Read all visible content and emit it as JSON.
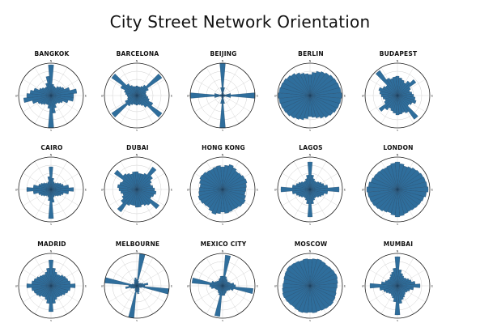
{
  "title": "City Street Network Orientation",
  "compass": {
    "n": "N",
    "e": "E",
    "s": "S",
    "w": "W"
  },
  "colors": {
    "bar_fill": "#2f6e9c",
    "bar_stroke": "#1c3f5c",
    "ring": "#d0d0d0",
    "outer": "#222222"
  },
  "chart_data": {
    "type": "polar-histogram",
    "bins": 36,
    "bin_width_deg": 10,
    "value_unit": "relative frequency",
    "cities": [
      {
        "name": "BANGKOK",
        "values": [
          0.95,
          0.35,
          0.3,
          0.28,
          0.35,
          0.4,
          0.45,
          0.6,
          0.8,
          0.7,
          0.7,
          0.55,
          0.4,
          0.35,
          0.3,
          0.3,
          0.4,
          0.55,
          1.0,
          0.4,
          0.3,
          0.3,
          0.35,
          0.4,
          0.45,
          0.6,
          0.85,
          0.75,
          0.65,
          0.55,
          0.4,
          0.35,
          0.3,
          0.3,
          0.4,
          0.6
        ]
      },
      {
        "name": "BARCELONA",
        "values": [
          0.3,
          0.28,
          0.28,
          0.32,
          0.4,
          0.95,
          0.4,
          0.3,
          0.28,
          0.3,
          0.35,
          0.4,
          0.55,
          0.95,
          0.45,
          0.35,
          0.3,
          0.28,
          0.3,
          0.28,
          0.28,
          0.32,
          0.4,
          0.95,
          0.4,
          0.3,
          0.28,
          0.3,
          0.35,
          0.4,
          0.55,
          0.95,
          0.45,
          0.35,
          0.3,
          0.28
        ]
      },
      {
        "name": "BEIJING",
        "values": [
          1.0,
          0.25,
          0.08,
          0.06,
          0.05,
          0.05,
          0.05,
          0.08,
          0.25,
          1.0,
          0.25,
          0.08,
          0.06,
          0.05,
          0.05,
          0.05,
          0.08,
          0.25,
          1.0,
          0.25,
          0.08,
          0.06,
          0.05,
          0.05,
          0.05,
          0.08,
          0.25,
          1.0,
          0.25,
          0.08,
          0.06,
          0.05,
          0.05,
          0.05,
          0.08,
          0.25
        ]
      },
      {
        "name": "BERLIN",
        "values": [
          0.65,
          0.72,
          0.78,
          0.82,
          0.86,
          0.9,
          0.92,
          0.94,
          0.96,
          0.98,
          0.96,
          0.94,
          0.92,
          0.88,
          0.84,
          0.78,
          0.72,
          0.68,
          0.65,
          0.72,
          0.78,
          0.82,
          0.86,
          0.9,
          0.92,
          0.94,
          0.96,
          0.98,
          0.96,
          0.94,
          0.92,
          0.88,
          0.84,
          0.78,
          0.72,
          0.68
        ]
      },
      {
        "name": "BUDAPEST",
        "values": [
          0.6,
          0.55,
          0.5,
          0.45,
          0.55,
          0.7,
          0.45,
          0.4,
          0.45,
          0.5,
          0.55,
          0.6,
          0.5,
          0.45,
          0.9,
          0.6,
          0.55,
          0.58,
          0.6,
          0.55,
          0.5,
          0.45,
          0.55,
          0.7,
          0.45,
          0.4,
          0.45,
          0.5,
          0.55,
          0.6,
          0.5,
          0.45,
          0.95,
          0.6,
          0.55,
          0.58
        ]
      },
      {
        "name": "CAIRO",
        "values": [
          0.7,
          0.35,
          0.25,
          0.22,
          0.25,
          0.3,
          0.35,
          0.4,
          0.55,
          0.7,
          0.55,
          0.4,
          0.35,
          0.3,
          0.25,
          0.22,
          0.25,
          0.4,
          0.9,
          0.35,
          0.25,
          0.22,
          0.25,
          0.3,
          0.35,
          0.4,
          0.55,
          0.75,
          0.55,
          0.4,
          0.35,
          0.3,
          0.25,
          0.22,
          0.25,
          0.4
        ]
      },
      {
        "name": "DUBAI",
        "values": [
          0.55,
          0.5,
          0.5,
          0.55,
          0.85,
          0.6,
          0.5,
          0.45,
          0.5,
          0.55,
          0.6,
          0.55,
          0.5,
          0.85,
          0.6,
          0.55,
          0.5,
          0.55,
          0.55,
          0.5,
          0.5,
          0.55,
          0.85,
          0.6,
          0.5,
          0.45,
          0.5,
          0.55,
          0.6,
          0.55,
          0.5,
          0.85,
          0.6,
          0.55,
          0.5,
          0.55
        ]
      },
      {
        "name": "HONG KONG",
        "values": [
          0.7,
          0.75,
          0.8,
          0.75,
          0.7,
          0.72,
          0.76,
          0.78,
          0.74,
          0.72,
          0.7,
          0.74,
          0.78,
          0.76,
          0.72,
          0.7,
          0.72,
          0.74,
          0.7,
          0.75,
          0.8,
          0.75,
          0.7,
          0.72,
          0.76,
          0.78,
          0.74,
          0.72,
          0.7,
          0.74,
          0.78,
          0.76,
          0.72,
          0.7,
          0.72,
          0.74
        ]
      },
      {
        "name": "LAGOS",
        "values": [
          0.85,
          0.45,
          0.35,
          0.3,
          0.3,
          0.35,
          0.4,
          0.45,
          0.55,
          0.9,
          0.55,
          0.45,
          0.4,
          0.35,
          0.3,
          0.3,
          0.35,
          0.45,
          0.85,
          0.45,
          0.35,
          0.3,
          0.3,
          0.35,
          0.4,
          0.45,
          0.55,
          0.9,
          0.55,
          0.45,
          0.4,
          0.35,
          0.3,
          0.3,
          0.35,
          0.45
        ]
      },
      {
        "name": "LONDON",
        "values": [
          0.85,
          0.8,
          0.75,
          0.78,
          0.82,
          0.85,
          0.88,
          0.9,
          0.92,
          0.95,
          0.9,
          0.85,
          0.82,
          0.8,
          0.78,
          0.76,
          0.78,
          0.82,
          0.85,
          0.8,
          0.75,
          0.78,
          0.82,
          0.85,
          0.88,
          0.9,
          0.92,
          0.95,
          0.9,
          0.85,
          0.82,
          0.8,
          0.78,
          0.76,
          0.78,
          0.82
        ]
      },
      {
        "name": "MADRID",
        "values": [
          0.8,
          0.55,
          0.45,
          0.4,
          0.42,
          0.48,
          0.52,
          0.55,
          0.6,
          0.75,
          0.6,
          0.55,
          0.5,
          0.45,
          0.42,
          0.4,
          0.45,
          0.55,
          0.8,
          0.55,
          0.45,
          0.4,
          0.42,
          0.48,
          0.52,
          0.55,
          0.6,
          0.75,
          0.6,
          0.55,
          0.5,
          0.45,
          0.42,
          0.4,
          0.45,
          0.55
        ]
      },
      {
        "name": "MELBOURNE",
        "values": [
          0.2,
          1.0,
          0.15,
          0.1,
          0.1,
          0.12,
          0.15,
          0.2,
          0.35,
          0.25,
          1.0,
          0.15,
          0.1,
          0.1,
          0.12,
          0.15,
          0.2,
          0.25,
          0.2,
          1.0,
          0.15,
          0.1,
          0.1,
          0.12,
          0.15,
          0.2,
          0.35,
          0.25,
          1.0,
          0.15,
          0.1,
          0.1,
          0.12,
          0.15,
          0.2,
          0.25
        ]
      },
      {
        "name": "MEXICO CITY",
        "values": [
          0.3,
          0.95,
          0.3,
          0.25,
          0.22,
          0.2,
          0.22,
          0.25,
          0.35,
          0.4,
          0.95,
          0.35,
          0.25,
          0.22,
          0.2,
          0.22,
          0.25,
          0.3,
          0.3,
          0.95,
          0.3,
          0.25,
          0.22,
          0.2,
          0.22,
          0.25,
          0.35,
          0.4,
          0.95,
          0.35,
          0.25,
          0.22,
          0.2,
          0.22,
          0.25,
          0.3
        ]
      },
      {
        "name": "MOSCOW",
        "values": [
          0.82,
          0.84,
          0.86,
          0.84,
          0.82,
          0.84,
          0.86,
          0.88,
          0.86,
          0.84,
          0.82,
          0.84,
          0.86,
          0.88,
          0.86,
          0.84,
          0.82,
          0.84,
          0.82,
          0.84,
          0.86,
          0.84,
          0.82,
          0.84,
          0.86,
          0.88,
          0.86,
          0.84,
          0.82,
          0.84,
          0.86,
          0.88,
          0.86,
          0.84,
          0.82,
          0.84
        ]
      },
      {
        "name": "MUMBAI",
        "values": [
          0.9,
          0.5,
          0.4,
          0.35,
          0.32,
          0.35,
          0.4,
          0.45,
          0.55,
          0.7,
          0.5,
          0.4,
          0.35,
          0.32,
          0.35,
          0.4,
          0.45,
          0.55,
          0.9,
          0.5,
          0.4,
          0.35,
          0.32,
          0.35,
          0.4,
          0.45,
          0.55,
          0.85,
          0.5,
          0.4,
          0.35,
          0.32,
          0.35,
          0.4,
          0.45,
          0.55
        ]
      }
    ]
  }
}
